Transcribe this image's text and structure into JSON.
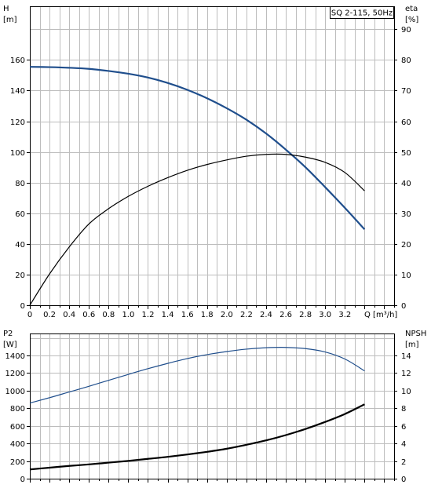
{
  "chart_data": [
    {
      "type": "line",
      "title": "SQ 2-115, 50Hz",
      "xlabel": "Q [m³/h]",
      "ylabel_left": {
        "name": "H",
        "unit": "[m]"
      },
      "ylabel_right": {
        "name": "eta",
        "unit": "[%]"
      },
      "xlim": [
        0,
        3.7
      ],
      "ylim_left": [
        0,
        195
      ],
      "ylim_right": [
        0,
        97.5
      ],
      "grid": true,
      "x_ticks": [
        "0",
        "0.2",
        "0.4",
        "0.6",
        "0.8",
        "1.0",
        "1.2",
        "1.4",
        "1.6",
        "1.8",
        "2.0",
        "2.2",
        "2.4",
        "2.6",
        "2.8",
        "3.0",
        "3.2"
      ],
      "y_left_ticks": [
        "0",
        "20",
        "40",
        "60",
        "80",
        "100",
        "120",
        "140",
        "160"
      ],
      "y_right_ticks": [
        "0",
        "10",
        "20",
        "30",
        "40",
        "50",
        "60",
        "70",
        "80",
        "90"
      ],
      "series": [
        {
          "color": "#1f4e8c",
          "axis": "left",
          "x": [
            0,
            0.2,
            0.4,
            0.6,
            0.8,
            1.0,
            1.2,
            1.4,
            1.6,
            1.8,
            2.0,
            2.2,
            2.4,
            2.6,
            2.8,
            3.0,
            3.2,
            3.4
          ],
          "y": [
            155.5,
            155.3,
            154.9,
            154.2,
            152.8,
            151,
            148.5,
            145,
            140.5,
            135,
            128.5,
            121,
            112,
            101.5,
            90,
            77,
            63.5,
            49.5
          ]
        },
        {
          "color": "#000000",
          "axis": "right",
          "x": [
            0,
            0.2,
            0.4,
            0.6,
            0.8,
            1.0,
            1.2,
            1.4,
            1.6,
            1.8,
            2.0,
            2.2,
            2.4,
            2.6,
            2.8,
            3.0,
            3.2,
            3.4
          ],
          "y": [
            0,
            10.2,
            19,
            26.5,
            31.5,
            35.5,
            38.8,
            41.6,
            44,
            45.9,
            47.4,
            48.6,
            49.2,
            49.2,
            48.3,
            46.6,
            43.3,
            37.3
          ]
        }
      ]
    },
    {
      "type": "line",
      "ylabel_left": {
        "name": "P2",
        "unit": "[W]"
      },
      "ylabel_right": {
        "name": "NPSH",
        "unit": "[m]"
      },
      "xlim": [
        0,
        3.7
      ],
      "ylim_left": [
        0,
        1650
      ],
      "ylim_right": [
        0,
        16.5
      ],
      "grid": true,
      "y_left_ticks": [
        "0",
        "200",
        "400",
        "600",
        "800",
        "1000",
        "1200",
        "1400"
      ],
      "y_right_ticks": [
        "0",
        "2",
        "4",
        "6",
        "8",
        "10",
        "12",
        "14"
      ],
      "series": [
        {
          "color": "#1f4e8c",
          "axis": "left",
          "x": [
            0,
            0.2,
            0.4,
            0.6,
            0.8,
            1.0,
            1.2,
            1.4,
            1.6,
            1.8,
            2.0,
            2.2,
            2.4,
            2.6,
            2.8,
            3.0,
            3.2,
            3.4
          ],
          "y": [
            860,
            920,
            985,
            1050,
            1118,
            1185,
            1250,
            1310,
            1365,
            1410,
            1445,
            1472,
            1488,
            1492,
            1478,
            1440,
            1360,
            1225
          ]
        },
        {
          "color": "#000000",
          "axis": "right",
          "x": [
            0,
            0.2,
            0.4,
            0.6,
            0.8,
            1.0,
            1.2,
            1.4,
            1.6,
            1.8,
            2.0,
            2.2,
            2.4,
            2.6,
            2.8,
            3.0,
            3.2,
            3.4
          ],
          "y": [
            1.05,
            1.25,
            1.45,
            1.62,
            1.82,
            2.02,
            2.25,
            2.48,
            2.75,
            3.05,
            3.4,
            3.85,
            4.35,
            4.95,
            5.65,
            6.45,
            7.35,
            8.45
          ]
        }
      ]
    }
  ]
}
